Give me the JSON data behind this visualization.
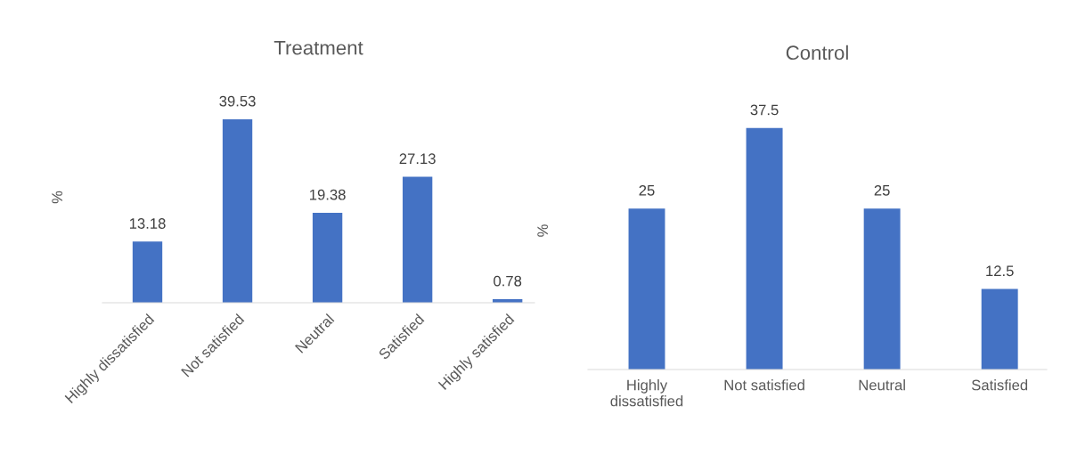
{
  "chart_data": [
    {
      "type": "bar",
      "title": "Treatment",
      "ylabel": "%",
      "categories": [
        "Highly dissatisfied",
        "Not satisfied",
        "Neutral",
        "Satisfied",
        "Highly satisfied"
      ],
      "series": [
        {
          "color": "#4472c4",
          "values": [
            13.18,
            39.53,
            19.38,
            27.13,
            0.78
          ]
        }
      ],
      "data_labels": true,
      "tick_labels": "x",
      "grid": false,
      "legend": false
    },
    {
      "type": "bar",
      "title": "Control",
      "ylabel": "%",
      "categories": [
        "Highly\ndissatisfied",
        "Not satisfied",
        "Neutral",
        "Satisfied"
      ],
      "series": [
        {
          "color": "#4472c4",
          "values": [
            25,
            37.5,
            25,
            12.5
          ]
        }
      ],
      "data_labels": true,
      "tick_labels": "x",
      "grid": false,
      "legend": false
    }
  ]
}
